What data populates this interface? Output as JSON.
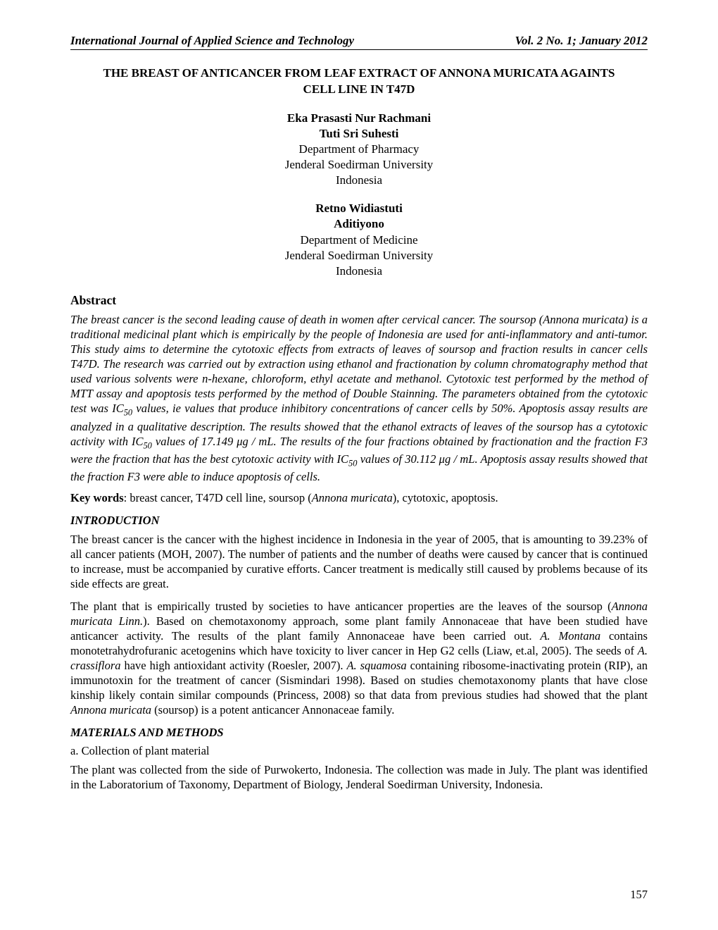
{
  "header": {
    "left": "International Journal of Applied Science and Technology",
    "right": "Vol. 2 No. 1; January 2012"
  },
  "title": {
    "line1": "THE BREAST OF ANTICANCER FROM LEAF EXTRACT OF ANNONA MURICATA AGAINTS",
    "line2": "CELL LINE IN T47D"
  },
  "authors_block1": {
    "name1": "Eka Prasasti Nur Rachmani",
    "name2": "Tuti Sri Suhesti",
    "dept": "Department of Pharmacy",
    "uni": "Jenderal Soedirman University",
    "country": "Indonesia"
  },
  "authors_block2": {
    "name1": "Retno Widiastuti",
    "name2": "Aditiyono",
    "dept": "Department of Medicine",
    "uni": "Jenderal Soedirman University",
    "country": "Indonesia"
  },
  "sections": {
    "abstract_head": "Abstract",
    "intro_head": "INTRODUCTION",
    "methods_head": "MATERIALS AND METHODS",
    "methods_sub_a": "a. Collection of plant material"
  },
  "abstract": {
    "p1a": "The breast cancer is the second leading cause of death in women after cervical cancer. The soursop (Annona muricata) is a traditional medicinal plant which is empirically by the people of Indonesia are used for anti-inflammatory and anti-tumor. This study aims to determine the cytotoxic effects from extracts of leaves of soursop and fraction results in cancer cells T47D. The research was carried out by extraction using ethanol and fractionation by column chromatography method that used various solvents were n-hexane, chloroform, ethyl acetate and methanol. Cytotoxic test performed by the method of MTT assay and apoptosis tests performed by the method of Double Stainning. The parameters obtained from the cytotoxic test was IC",
    "p1b": " values, ie values that produce inhibitory concentrations of cancer cells by 50%. Apoptosis assay results are analyzed in a qualitative description. The results showed that the ethanol extracts of leaves of the soursop has a cytotoxic activity with IC",
    "p1c": " values of 17.149 μg / mL. The results of the four fractions obtained by fractionation and the fraction F3 were the fraction that has the best cytotoxic activity with IC",
    "p1d": " values of 30.112 μg / mL. Apoptosis assay results showed that the fraction F3 were able to induce apoptosis of cells.",
    "sub": "50"
  },
  "keywords": {
    "label": "Key words",
    "sep": ": ",
    "pre": "breast cancer, T47D cell line, soursop (",
    "ital": "Annona muricata",
    "post": "), cytotoxic, apoptosis."
  },
  "intro": {
    "p1": "The breast cancer is the cancer with the highest incidence in Indonesia in the year of 2005, that is amounting to 39.23% of all cancer patients (MOH, 2007). The number of patients and the number of deaths were caused by cancer that is continued to increase, must be accompanied by curative efforts. Cancer treatment is medically still caused by problems because of its side effects are great.",
    "p2a": "The plant that is empirically trusted by societies to have anticancer properties are the leaves of the soursop (",
    "p2b": "Annona muricata Linn.",
    "p2c": "). Based on chemotaxonomy approach, some plant family Annonaceae that have been studied have anticancer activity. The results of the plant family Annonaceae have been carried out. ",
    "p2d": "A. Montana",
    "p2e": " contains monotetrahydrofuranic acetogenins which have toxicity to liver cancer in Hep G2 cells (Liaw, et.al, 2005). The seeds of ",
    "p2f": "A. crassiflora",
    "p2g": " have high antioxidant activity (Roesler, 2007). ",
    "p2h": "A. squamosa",
    "p2i": " containing ribosome-inactivating protein (RIP), an immunotoxin for the treatment of cancer (Sismindari 1998). Based on studies chemotaxonomy plants that have close kinship likely contain similar compounds (Princess, 2008) so that data from previous studies had showed that the plant ",
    "p2j": "Annona muricata",
    "p2k": " (soursop) is a potent anticancer Annonaceae family."
  },
  "methods": {
    "p1": "The plant was collected from the side of Purwokerto, Indonesia. The collection was made in July. The plant was identified in the Laboratorium of Taxonomy, Department of Biology, Jenderal Soedirman University, Indonesia."
  },
  "pagenum": "157"
}
